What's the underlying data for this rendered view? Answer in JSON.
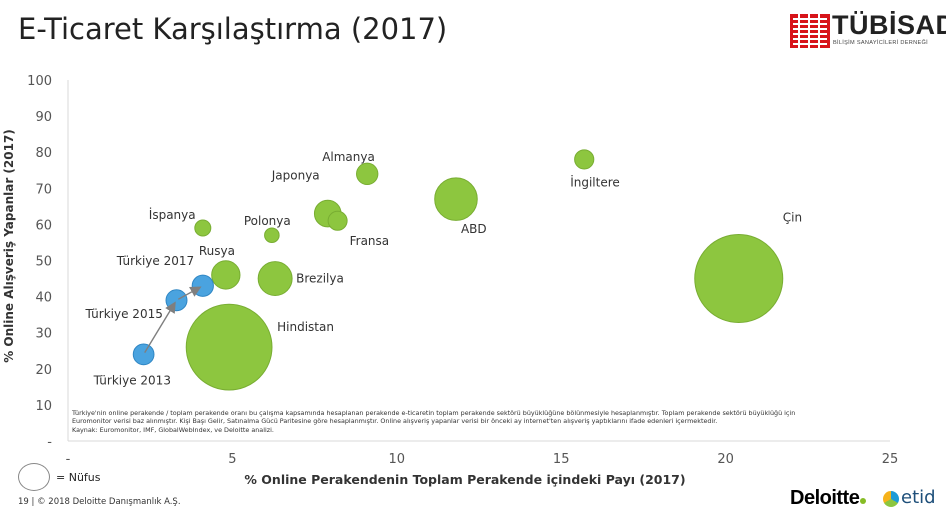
{
  "page": {
    "title": "E-Ticaret Karşılaştırma (2017)",
    "logo_name": "TÜBİSAD",
    "logo_subtitle": "BİLİŞİM SANAYİCİLERİ DERNEĞİ",
    "footnote_lines": [
      "Türkiye'nin online perakende / toplam perakende oranı bu çalışma kapsamında hesaplanan perakende e-ticaretin toplam perakende sektörü büyüklüğüne bölünmesiyle hesaplanmıştır. Toplam perakende sektörü büyüklüğü için",
      "Euromonitor verisi baz alınmıştır. Kişi Başı Gelir, Satınalma Gücü Paritesine göre hesaplanmıştır. Online alışveriş yapanlar verisi bir önceki ay internet'ten alışveriş yaptıklarını ifade edenleri içermektedir.",
      "Kaynak:  Euromonitor, IMF, GlobalWebIndex, ve Deloitte analizi."
    ],
    "legend_label": "= Nüfus",
    "page_footer": "19   |  © 2018 Deloitte Danışmanlık A.Ş.",
    "deloitte_logo": "Deloitte",
    "etid_logo": "etid",
    "colors": {
      "country_bubble": "#8dc63f",
      "turkey_bubble": "#4aa3df",
      "arrow": "#7f7f7f"
    }
  },
  "chart_data": {
    "type": "bubble",
    "title": "E-Ticaret Karşılaştırma (2017)",
    "xlabel": "% Online Perakendenin Toplam Perakende içindeki Payı (2017)",
    "ylabel": "% Online Alışveriş Yapanlar (2017)",
    "xlim": [
      0,
      25
    ],
    "ylim": [
      0,
      100
    ],
    "x_ticks": [
      "-",
      "5",
      "10",
      "15",
      "20",
      "25"
    ],
    "y_ticks": [
      "-",
      "10",
      "20",
      "30",
      "40",
      "50",
      "60",
      "70",
      "80",
      "90",
      "100"
    ],
    "size_legend": "= Nüfus",
    "series": [
      {
        "group": "countries",
        "points": [
          {
            "label": "Çin",
            "x": 20.4,
            "y": 45,
            "size": 1390
          },
          {
            "label": "Hindistan",
            "x": 4.9,
            "y": 26,
            "size": 1320
          },
          {
            "label": "ABD",
            "x": 11.8,
            "y": 67,
            "size": 325
          },
          {
            "label": "Brezilya",
            "x": 6.3,
            "y": 45,
            "size": 207
          },
          {
            "label": "Japonya",
            "x": 7.9,
            "y": 63,
            "size": 127
          },
          {
            "label": "Rusya",
            "x": 4.8,
            "y": 46,
            "size": 144
          },
          {
            "label": "Almanya",
            "x": 9.1,
            "y": 74,
            "size": 82
          },
          {
            "label": "Fransa",
            "x": 8.2,
            "y": 61,
            "size": 65
          },
          {
            "label": "İngiltere",
            "x": 15.7,
            "y": 78,
            "size": 66
          },
          {
            "label": "İspanya",
            "x": 4.1,
            "y": 59,
            "size": 46
          },
          {
            "label": "Polonya",
            "x": 6.2,
            "y": 57,
            "size": 38
          }
        ]
      },
      {
        "group": "turkey",
        "points": [
          {
            "label": "Türkiye 2013",
            "x": 2.3,
            "y": 24,
            "size": 77
          },
          {
            "label": "Türkiye 2015",
            "x": 3.3,
            "y": 39,
            "size": 79
          },
          {
            "label": "Türkiye 2017",
            "x": 4.1,
            "y": 43,
            "size": 81
          }
        ]
      }
    ]
  }
}
